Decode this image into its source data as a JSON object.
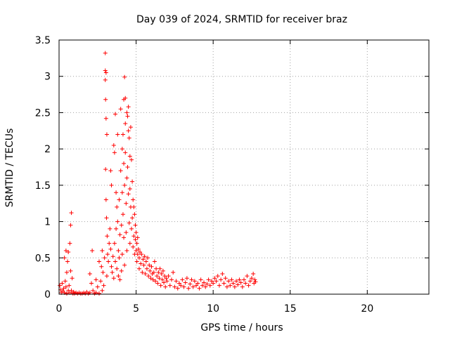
{
  "chart_data": {
    "type": "scatter",
    "title": "Day 039 of 2024, SRMTID for receiver braz",
    "xlabel": "GPS time / hours",
    "ylabel": "SRMTID / TECUs",
    "xlim": [
      0,
      24
    ],
    "ylim": [
      0,
      3.5
    ],
    "xticks": [
      0,
      5,
      10,
      15,
      20
    ],
    "xtick_labels": [
      "0",
      "5",
      "10",
      "15",
      "20"
    ],
    "yticks": [
      0,
      0.5,
      1,
      1.5,
      2,
      2.5,
      3,
      3.5
    ],
    "ytick_labels": [
      "0",
      "0.5",
      "1",
      "1.5",
      "2",
      "2.5",
      "3",
      "3.5"
    ],
    "grid": true,
    "marker": "+",
    "colors": {
      "series": "#ff0000",
      "grid": "#a0a0a0",
      "axis": "#000000"
    },
    "series": [
      {
        "name": "SRMTID",
        "points": [
          [
            0.05,
            0.12
          ],
          [
            0.1,
            0.06
          ],
          [
            0.15,
            0.02
          ],
          [
            0.2,
            0.15
          ],
          [
            0.25,
            0.04
          ],
          [
            0.3,
            0.08
          ],
          [
            0.35,
            0.5
          ],
          [
            0.35,
            0.02
          ],
          [
            0.4,
            0.18
          ],
          [
            0.45,
            0.6
          ],
          [
            0.45,
            0.1
          ],
          [
            0.5,
            0.3
          ],
          [
            0.5,
            0.01
          ],
          [
            0.55,
            0.45
          ],
          [
            0.6,
            0.05
          ],
          [
            0.6,
            0.58
          ],
          [
            0.65,
            0.12
          ],
          [
            0.7,
            0.02
          ],
          [
            0.7,
            0.7
          ],
          [
            0.75,
            0.95
          ],
          [
            0.75,
            0.32
          ],
          [
            0.8,
            1.12
          ],
          [
            0.8,
            0.05
          ],
          [
            0.85,
            0.22
          ],
          [
            0.9,
            0.01
          ],
          [
            0.95,
            0.03
          ],
          [
            1.0,
            0.01
          ],
          [
            1.1,
            0.02
          ],
          [
            1.2,
            0.01
          ],
          [
            1.3,
            0.02
          ],
          [
            1.4,
            0.01
          ],
          [
            1.5,
            0.01
          ],
          [
            1.6,
            0.02
          ],
          [
            1.7,
            0.01
          ],
          [
            1.8,
            0.03
          ],
          [
            1.9,
            0.01
          ],
          [
            2.0,
            0.02
          ],
          [
            2.0,
            0.28
          ],
          [
            2.1,
            0.15
          ],
          [
            2.15,
            0.6
          ],
          [
            2.2,
            0.05
          ],
          [
            2.3,
            0.01
          ],
          [
            2.4,
            0.2
          ],
          [
            2.4,
            0.02
          ],
          [
            2.5,
            0.1
          ],
          [
            2.6,
            0.45
          ],
          [
            2.6,
            0.01
          ],
          [
            2.7,
            0.18
          ],
          [
            2.75,
            0.38
          ],
          [
            2.8,
            0.05
          ],
          [
            2.8,
            0.6
          ],
          [
            2.85,
            0.3
          ],
          [
            2.9,
            0.12
          ],
          [
            2.95,
            0.5
          ],
          [
            3.0,
            3.32
          ],
          [
            3.0,
            3.08
          ],
          [
            3.0,
            2.95
          ],
          [
            3.02,
            2.68
          ],
          [
            3.05,
            3.05
          ],
          [
            3.05,
            2.42
          ],
          [
            3.02,
            1.72
          ],
          [
            3.05,
            1.3
          ],
          [
            3.08,
            1.05
          ],
          [
            3.1,
            2.2
          ],
          [
            3.1,
            0.25
          ],
          [
            3.12,
            0.8
          ],
          [
            3.15,
            0.55
          ],
          [
            3.2,
            0.45
          ],
          [
            3.25,
            0.7
          ],
          [
            3.3,
            0.9
          ],
          [
            3.35,
            1.7
          ],
          [
            3.35,
            0.62
          ],
          [
            3.4,
            0.38
          ],
          [
            3.4,
            1.5
          ],
          [
            3.45,
            0.3
          ],
          [
            3.5,
            0.52
          ],
          [
            3.55,
            0.22
          ],
          [
            3.55,
            2.05
          ],
          [
            3.6,
            1.95
          ],
          [
            3.6,
            0.7
          ],
          [
            3.65,
            2.48
          ],
          [
            3.65,
            0.45
          ],
          [
            3.7,
            1.4
          ],
          [
            3.7,
            0.9
          ],
          [
            3.75,
            1.2
          ],
          [
            3.75,
            0.35
          ],
          [
            3.8,
            1.0
          ],
          [
            3.8,
            2.2
          ],
          [
            3.85,
            0.25
          ],
          [
            3.85,
            0.6
          ],
          [
            3.9,
            1.3
          ],
          [
            3.9,
            0.5
          ],
          [
            3.95,
            0.82
          ],
          [
            3.95,
            0.2
          ],
          [
            4.0,
            2.55
          ],
          [
            4.0,
            1.7
          ],
          [
            4.05,
            0.95
          ],
          [
            4.05,
            0.32
          ],
          [
            4.1,
            2.0
          ],
          [
            4.1,
            1.4
          ],
          [
            4.1,
            0.55
          ],
          [
            4.15,
            2.2
          ],
          [
            4.15,
            1.1
          ],
          [
            4.2,
            2.68
          ],
          [
            4.2,
            1.8
          ],
          [
            4.2,
            0.78
          ],
          [
            4.25,
            2.99
          ],
          [
            4.25,
            1.5
          ],
          [
            4.25,
            0.4
          ],
          [
            4.3,
            2.7
          ],
          [
            4.3,
            2.35
          ],
          [
            4.3,
            1.95
          ],
          [
            4.35,
            1.25
          ],
          [
            4.35,
            0.85
          ],
          [
            4.4,
            2.5
          ],
          [
            4.4,
            1.6
          ],
          [
            4.4,
            0.6
          ],
          [
            4.45,
            2.45
          ],
          [
            4.45,
            1.75
          ],
          [
            4.5,
            2.58
          ],
          [
            4.5,
            2.25
          ],
          [
            4.5,
            1.38
          ],
          [
            4.55,
            2.15
          ],
          [
            4.55,
            0.98
          ],
          [
            4.6,
            1.9
          ],
          [
            4.6,
            1.45
          ],
          [
            4.6,
            0.7
          ],
          [
            4.65,
            2.3
          ],
          [
            4.65,
            1.2
          ],
          [
            4.7,
            1.85
          ],
          [
            4.7,
            0.9
          ],
          [
            4.75,
            1.55
          ],
          [
            4.75,
            1.05
          ],
          [
            4.8,
            1.3
          ],
          [
            4.8,
            0.65
          ],
          [
            4.85,
            1.2
          ],
          [
            4.85,
            0.8
          ],
          [
            4.9,
            1.1
          ],
          [
            4.9,
            0.55
          ],
          [
            4.95,
            0.95
          ],
          [
            4.95,
            0.75
          ],
          [
            5.0,
            0.85
          ],
          [
            5.0,
            0.6
          ],
          [
            5.05,
            0.7
          ],
          [
            5.05,
            0.45
          ],
          [
            5.1,
            0.78
          ],
          [
            5.1,
            0.55
          ],
          [
            5.15,
            0.62
          ],
          [
            5.2,
            0.5
          ],
          [
            5.2,
            0.35
          ],
          [
            5.25,
            0.58
          ],
          [
            5.3,
            0.42
          ],
          [
            5.35,
            0.55
          ],
          [
            5.4,
            0.3
          ],
          [
            5.45,
            0.48
          ],
          [
            5.5,
            0.4
          ],
          [
            5.55,
            0.52
          ],
          [
            5.6,
            0.28
          ],
          [
            5.65,
            0.45
          ],
          [
            5.7,
            0.35
          ],
          [
            5.75,
            0.5
          ],
          [
            5.8,
            0.25
          ],
          [
            5.85,
            0.4
          ],
          [
            5.9,
            0.32
          ],
          [
            5.95,
            0.22
          ],
          [
            6.0,
            0.38
          ],
          [
            6.05,
            0.28
          ],
          [
            6.1,
            0.2
          ],
          [
            6.15,
            0.3
          ],
          [
            6.2,
            0.45
          ],
          [
            6.25,
            0.18
          ],
          [
            6.3,
            0.35
          ],
          [
            6.35,
            0.25
          ],
          [
            6.4,
            0.15
          ],
          [
            6.45,
            0.3
          ],
          [
            6.5,
            0.22
          ],
          [
            6.55,
            0.35
          ],
          [
            6.6,
            0.12
          ],
          [
            6.65,
            0.28
          ],
          [
            6.7,
            0.2
          ],
          [
            6.75,
            0.32
          ],
          [
            6.8,
            0.16
          ],
          [
            6.85,
            0.25
          ],
          [
            6.9,
            0.1
          ],
          [
            6.95,
            0.22
          ],
          [
            7.0,
            0.18
          ],
          [
            7.1,
            0.25
          ],
          [
            7.2,
            0.12
          ],
          [
            7.3,
            0.2
          ],
          [
            7.4,
            0.3
          ],
          [
            7.5,
            0.1
          ],
          [
            7.6,
            0.18
          ],
          [
            7.7,
            0.08
          ],
          [
            7.8,
            0.15
          ],
          [
            7.9,
            0.12
          ],
          [
            8.0,
            0.2
          ],
          [
            8.1,
            0.1
          ],
          [
            8.2,
            0.16
          ],
          [
            8.3,
            0.22
          ],
          [
            8.4,
            0.08
          ],
          [
            8.5,
            0.14
          ],
          [
            8.6,
            0.2
          ],
          [
            8.7,
            0.1
          ],
          [
            8.8,
            0.18
          ],
          [
            8.9,
            0.12
          ],
          [
            9.0,
            0.15
          ],
          [
            9.1,
            0.08
          ],
          [
            9.2,
            0.2
          ],
          [
            9.3,
            0.12
          ],
          [
            9.4,
            0.16
          ],
          [
            9.5,
            0.1
          ],
          [
            9.6,
            0.14
          ],
          [
            9.7,
            0.2
          ],
          [
            9.8,
            0.12
          ],
          [
            9.9,
            0.18
          ],
          [
            10.0,
            0.15
          ],
          [
            10.1,
            0.22
          ],
          [
            10.2,
            0.18
          ],
          [
            10.3,
            0.25
          ],
          [
            10.4,
            0.12
          ],
          [
            10.5,
            0.2
          ],
          [
            10.6,
            0.28
          ],
          [
            10.7,
            0.15
          ],
          [
            10.8,
            0.22
          ],
          [
            10.9,
            0.1
          ],
          [
            11.0,
            0.18
          ],
          [
            11.1,
            0.12
          ],
          [
            11.2,
            0.2
          ],
          [
            11.3,
            0.15
          ],
          [
            11.4,
            0.1
          ],
          [
            11.5,
            0.18
          ],
          [
            11.6,
            0.13
          ],
          [
            11.7,
            0.2
          ],
          [
            11.8,
            0.16
          ],
          [
            11.9,
            0.1
          ],
          [
            12.0,
            0.2
          ],
          [
            12.1,
            0.15
          ],
          [
            12.2,
            0.25
          ],
          [
            12.3,
            0.12
          ],
          [
            12.4,
            0.18
          ],
          [
            12.5,
            0.22
          ],
          [
            12.6,
            0.28
          ],
          [
            12.65,
            0.15
          ],
          [
            12.7,
            0.2
          ],
          [
            12.75,
            0.17
          ]
        ]
      }
    ]
  }
}
